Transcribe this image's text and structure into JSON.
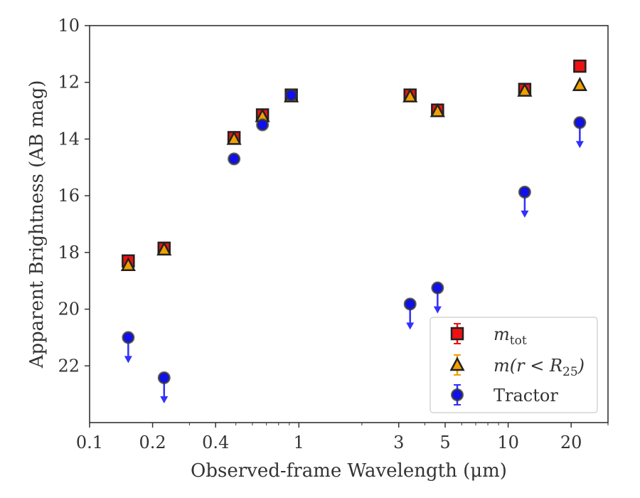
{
  "chart_data": {
    "type": "scatter",
    "xlabel": "Observed-frame Wavelength (μm)",
    "ylabel": "Apparent Brightness (AB mag)",
    "xscale": "log",
    "xlim": [
      0.1,
      30
    ],
    "ylim": [
      24,
      10
    ],
    "y_inverted": true,
    "x_ticks": [
      0.1,
      0.2,
      0.4,
      1,
      3,
      5,
      10,
      20
    ],
    "x_tick_labels": [
      "0.1",
      "0.2",
      "0.4",
      "1",
      "3",
      "5",
      "10",
      "20"
    ],
    "y_ticks": [
      10,
      12,
      14,
      16,
      18,
      20,
      22
    ],
    "y_tick_labels": [
      "10",
      "12",
      "14",
      "16",
      "18",
      "20",
      "22"
    ],
    "grid": false,
    "legend_position": "lower-right",
    "legend": [
      {
        "label_main": "m",
        "label_sub": "tot",
        "label_tail": ""
      },
      {
        "label_main": "m(r < R",
        "label_sub": "25",
        "label_tail": ")"
      },
      {
        "label_main": "Tractor",
        "label_sub": "",
        "label_tail": ""
      }
    ],
    "series": [
      {
        "marker": "square",
        "color": "#ee1111",
        "x": [
          0.153,
          0.227,
          0.49,
          0.67,
          0.92,
          3.4,
          4.6,
          12.0,
          22.0
        ],
        "y": [
          18.3,
          17.85,
          13.95,
          13.15,
          12.45,
          12.45,
          12.98,
          12.25,
          11.43
        ],
        "upper_limit": [
          false,
          false,
          false,
          false,
          false,
          false,
          false,
          false,
          false
        ]
      },
      {
        "marker": "triangle",
        "color": "#f0a000",
        "x": [
          0.153,
          0.227,
          0.49,
          0.67,
          0.92,
          3.4,
          4.6,
          12.0,
          22.0
        ],
        "y": [
          18.45,
          17.9,
          14.0,
          13.2,
          12.5,
          12.5,
          13.02,
          12.3,
          12.1
        ],
        "upper_limit": [
          false,
          false,
          false,
          false,
          false,
          false,
          false,
          false,
          false
        ]
      },
      {
        "marker": "circle",
        "color": "#1010ee",
        "x": [
          0.153,
          0.227,
          0.49,
          0.67,
          0.92,
          3.4,
          4.6,
          12.0,
          22.0
        ],
        "y": [
          21.0,
          22.42,
          14.7,
          13.5,
          12.45,
          19.82,
          19.25,
          15.87,
          13.42
        ],
        "upper_limit": [
          true,
          true,
          false,
          false,
          false,
          true,
          true,
          true,
          true
        ]
      }
    ]
  }
}
